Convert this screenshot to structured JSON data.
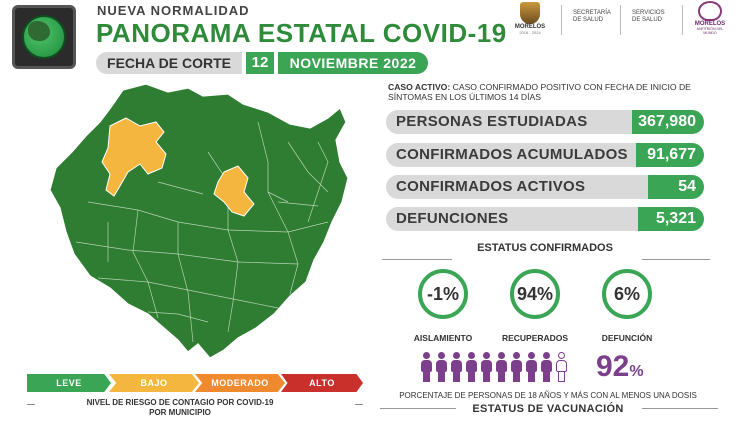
{
  "header": {
    "kicker": "NUEVA NORMALIDAD",
    "title": "PANORAMA ESTATAL COVID-19",
    "fecha_label": "FECHA DE CORTE",
    "fecha_dia": "12",
    "fecha_mes": "NOVIEMBRE 2022"
  },
  "logos": {
    "morelos": "MORELOS",
    "morelos_period": "2018 - 2024",
    "secretaria_line1": "SECRETARÍA",
    "secretaria_line2": "DE SALUD",
    "servicios_line1": "SERVICIOS",
    "servicios_line2": "DE SALUD",
    "morelos_brand": "MORELOS",
    "morelos_brand_sub": "ANFITRIÓN DEL MUNDO"
  },
  "caso_activo": {
    "term": "CASO ACTIVO:",
    "definition": "CASO CONFIRMADO POSITIVO CON FECHA DE INICIO DE SÍNTOMAS EN LOS ÚLTIMOS 14 DÍAS"
  },
  "stats": [
    {
      "label": "PERSONAS ESTUDIADAS",
      "value": "367,980"
    },
    {
      "label": "CONFIRMADOS ACUMULADOS",
      "value": "91,677"
    },
    {
      "label": "CONFIRMADOS ACTIVOS",
      "value": "54"
    },
    {
      "label": "DEFUNCIONES",
      "value": "5,321"
    }
  ],
  "estatus": {
    "title": "ESTATUS CONFIRMADOS",
    "items": [
      {
        "value": "-1%",
        "label": "AISLAMIENTO"
      },
      {
        "value": "94%",
        "label": "RECUPERADOS"
      },
      {
        "value": "6%",
        "label": "DEFUNCIÓN"
      }
    ]
  },
  "vacunacion": {
    "filled_icons": 9,
    "total_icons": 10,
    "pct_number": "92",
    "pct_sign": "%",
    "description": "PORCENTAJE DE PERSONAS DE 18 AÑOS Y MÁS CON AL MENOS UNA DOSIS",
    "title": "ESTATUS DE VACUNACIÓN",
    "color_filled": "#7b3f8c",
    "color_empty": "#ffffff"
  },
  "riesgo": {
    "levels": [
      {
        "label": "LEVE",
        "color": "#3aa655"
      },
      {
        "label": "BAJO",
        "color": "#f4b63f"
      },
      {
        "label": "MODERADO",
        "color": "#ef8a2e"
      },
      {
        "label": "ALTO",
        "color": "#c9302c"
      }
    ],
    "caption_line1_a": "NIVEL DE RIESGO DE CONTAGIO POR ",
    "caption_line1_b": "COVID-19",
    "caption_line2": "POR MUNICIPIO"
  },
  "colors": {
    "accent_green": "#3aa655",
    "map_green": "#2f7d32",
    "map_yellow": "#f4b63f",
    "title_green": "#2e8b3a",
    "label_gray": "#d9d9d9"
  },
  "icons": {
    "semaforo": "traffic-light-green-icon",
    "persona": "person-icon"
  }
}
